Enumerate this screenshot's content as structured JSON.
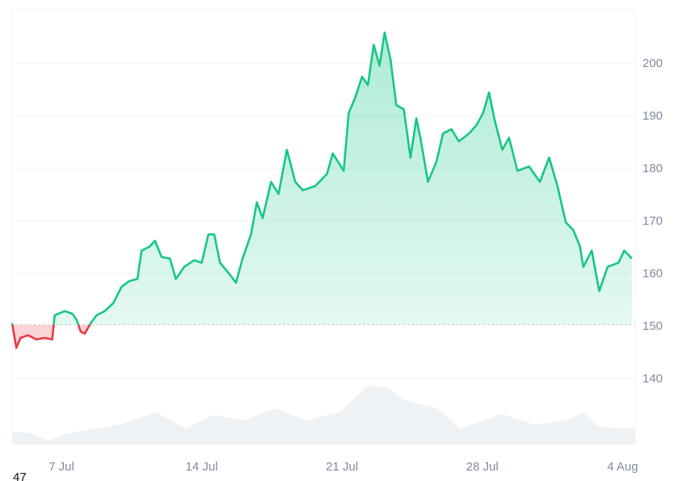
{
  "chart_data": {
    "type": "area",
    "title": "",
    "xlabel": "",
    "ylabel": "",
    "ylim": [
      128,
      210
    ],
    "y_ticks": [
      "200",
      "190",
      "180",
      "170",
      "160",
      "150",
      "140"
    ],
    "y_tick_values": [
      200,
      190,
      180,
      170,
      160,
      150,
      140
    ],
    "x_ticks": [
      "7 Jul",
      "14 Jul",
      "21 Jul",
      "28 Jul",
      "4 Aug"
    ],
    "x_tick_dates": [
      "Jul 7 00:00",
      "Jul 14 00:00",
      "Jul 21 00:00",
      "Jul 28 00:00",
      "Aug 4 00:00"
    ],
    "baseline": 150.2,
    "grid": true,
    "axis_position": "right",
    "colors": {
      "up": "#16c784",
      "down": "#ea3943",
      "volume": "#eff2f5",
      "grid": "#eff2f5",
      "tick": "#808a9d"
    },
    "series": [
      {
        "x": [
          "Jul 4 13:00",
          "Jul 4 18:00",
          "Jul 4 23:00",
          "Jul 5 08:00",
          "Jul 5 18:00",
          "Jul 6 04:00",
          "Jul 6 13:00",
          "Jul 6 16:00",
          "Jul 7 04:00",
          "Jul 7 13:00",
          "Jul 7 18:00",
          "Jul 7 23:00",
          "Jul 8 04:00",
          "Jul 8 11:00",
          "Jul 8 18:00",
          "Jul 9 04:00",
          "Jul 9 14:00",
          "Jul 10 00:00",
          "Jul 10 09:00",
          "Jul 10 19:00",
          "Jul 11 00:00",
          "Jul 11 10:00",
          "Jul 11 16:00",
          "Jul 12 00:00",
          "Jul 12 10:00",
          "Jul 12 17:00",
          "Jul 13 03:00",
          "Jul 13 15:00",
          "Jul 14 00:00",
          "Jul 14 08:00",
          "Jul 14 15:00",
          "Jul 14 22:00",
          "Jul 15 10:00",
          "Jul 15 17:00",
          "Jul 16 01:00",
          "Jul 16 11:00",
          "Jul 16 18:00",
          "Jul 17 01:00",
          "Jul 17 11:00",
          "Jul 17 20:00",
          "Jul 18 06:00",
          "Jul 18 16:00",
          "Jul 19 01:00",
          "Jul 19 16:00",
          "Jul 20 06:00",
          "Jul 20 13:00",
          "Jul 21 02:00",
          "Jul 21 08:00",
          "Jul 21 16:00",
          "Jul 22 00:00",
          "Jul 22 07:00",
          "Jul 22 14:00",
          "Jul 22 21:00",
          "Jul 23 03:00",
          "Jul 23 10:00",
          "Jul 23 17:00",
          "Jul 24 02:00",
          "Jul 24 10:00",
          "Jul 24 17:00",
          "Jul 24 22:00",
          "Jul 25 07:00",
          "Jul 25 17:00",
          "Jul 26 01:00",
          "Jul 26 11:00",
          "Jul 26 20:00",
          "Jul 27 08:00",
          "Jul 27 17:00",
          "Jul 28 01:00",
          "Jul 28 08:00",
          "Jul 28 15:00",
          "Jul 29 00:00",
          "Jul 29 08:00",
          "Jul 29 18:00",
          "Jul 30 08:00",
          "Jul 30 21:00",
          "Jul 31 08:00",
          "Jul 31 18:00",
          "Aug 1 04:00",
          "Aug 1 13:00",
          "Aug 1 21:00",
          "Aug 2 01:00",
          "Aug 2 11:00",
          "Aug 2 20:00",
          "Aug 3 06:00",
          "Aug 3 19:00",
          "Aug 4 02:00",
          "Aug 4 11:00"
        ],
        "values": [
          150.5,
          145.8,
          147.7,
          148.2,
          147.4,
          147.7,
          147.4,
          152.0,
          152.8,
          152.3,
          151.2,
          148.9,
          148.5,
          150.5,
          152.0,
          152.8,
          154.3,
          157.4,
          158.5,
          158.9,
          164.3,
          165.1,
          166.2,
          163.1,
          162.8,
          158.9,
          161.2,
          162.5,
          162.0,
          167.4,
          167.4,
          162.0,
          159.7,
          158.2,
          162.8,
          167.4,
          173.5,
          170.5,
          177.4,
          175.1,
          183.5,
          177.4,
          175.8,
          176.6,
          178.9,
          182.8,
          179.5,
          190.5,
          193.5,
          197.4,
          195.8,
          203.5,
          199.5,
          205.8,
          200.8,
          192.0,
          191.2,
          182.0,
          189.5,
          185.7,
          177.4,
          181.2,
          186.6,
          187.4,
          185.1,
          186.6,
          188.2,
          190.5,
          194.4,
          189.0,
          183.5,
          185.8,
          179.5,
          180.3,
          177.4,
          182.0,
          176.6,
          169.7,
          168.2,
          165.1,
          161.2,
          164.3,
          156.6,
          161.2,
          162.0,
          164.3,
          162.8
        ]
      }
    ],
    "volume": {
      "x": [
        "Jul 4 13:00",
        "Jul 5 14:00",
        "Jul 6 09:00",
        "Jul 7 04:00",
        "Jul 8 18:00",
        "Jul 10 00:00",
        "Jul 11 17:00",
        "Jul 13 05:00",
        "Jul 14 15:00",
        "Jul 16 01:00",
        "Jul 17 16:00",
        "Jul 19 06:00",
        "Jul 20 21:00",
        "Jul 22 07:00",
        "Jul 23 07:00",
        "Jul 24 02:00",
        "Jul 25 17:00",
        "Jul 26 22:00",
        "Jul 28 23:00",
        "Jul 30 13:00",
        "Aug 1 04:00",
        "Aug 2 01:00",
        "Aug 2 19:00",
        "Aug 4 15:00"
      ],
      "relative_values": [
        17,
        13,
        5,
        13,
        20,
        25,
        40,
        20,
        37,
        30,
        45,
        30,
        40,
        73,
        70,
        55,
        45,
        20,
        38,
        25,
        30,
        40,
        22,
        20
      ]
    }
  },
  "footer": {
    "cut_text": "47"
  }
}
